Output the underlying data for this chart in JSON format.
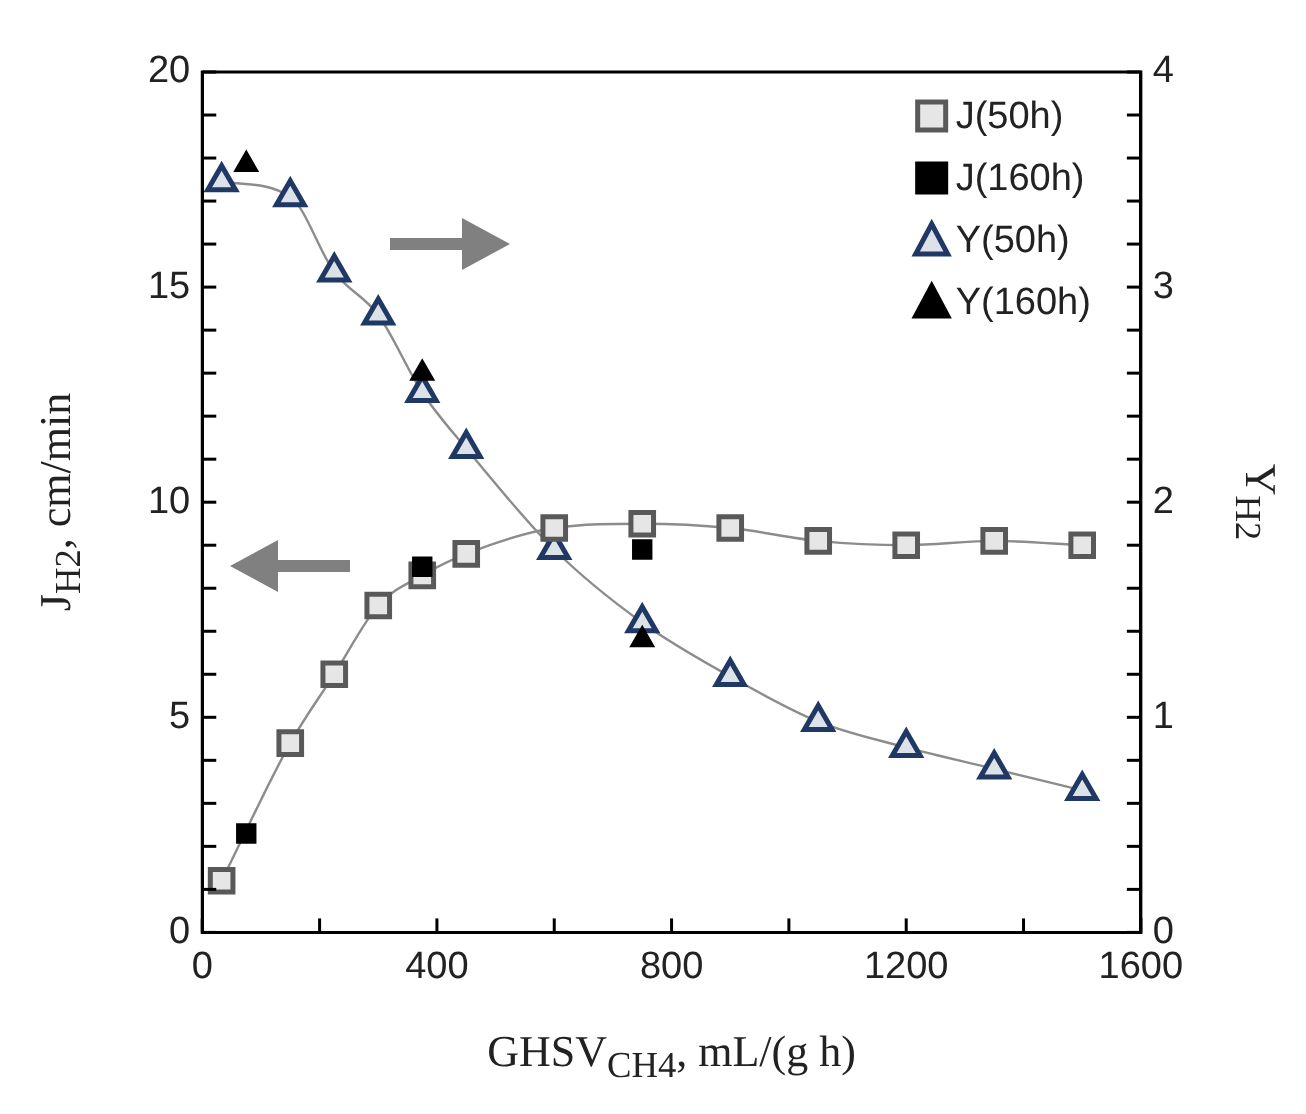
{
  "chart_data": {
    "type": "line",
    "xlabel": "GHSV$_{CH4}$, mL/(g h)",
    "ylabel": "J$_{H2}$, cm/min",
    "y2label": "Y$_{H2}$",
    "xlim": [
      0,
      1600
    ],
    "xticks": [
      0,
      {
        "value": 200,
        "label": null
      },
      400,
      {
        "value": 600,
        "label": null
      },
      800,
      {
        "value": 1000,
        "label": null
      },
      1200,
      {
        "value": 1400,
        "label": null
      },
      1600
    ],
    "ylim": [
      0,
      20
    ],
    "yticks": [
      0,
      {
        "value": 1,
        "label": null
      },
      {
        "value": 2,
        "label": null
      },
      {
        "value": 3,
        "label": null
      },
      {
        "value": 4,
        "label": null
      },
      5,
      {
        "value": 6,
        "label": null
      },
      {
        "value": 7,
        "label": null
      },
      {
        "value": 8,
        "label": null
      },
      {
        "value": 9,
        "label": null
      },
      10,
      {
        "value": 11,
        "label": null
      },
      {
        "value": 12,
        "label": null
      },
      {
        "value": 13,
        "label": null
      },
      {
        "value": 14,
        "label": null
      },
      15,
      {
        "value": 16,
        "label": null
      },
      {
        "value": 17,
        "label": null
      },
      {
        "value": 18,
        "label": null
      },
      {
        "value": 19,
        "label": null
      },
      20
    ],
    "y2lim": [
      0,
      4
    ],
    "y2ticks": [
      0,
      {
        "value": 0.2,
        "label": null
      },
      {
        "value": 0.4,
        "label": null
      },
      {
        "value": 0.6,
        "label": null
      },
      {
        "value": 0.8,
        "label": null
      },
      1,
      {
        "value": 1.2,
        "label": null
      },
      {
        "value": 1.4,
        "label": null
      },
      {
        "value": 1.6,
        "label": null
      },
      {
        "value": 1.8,
        "label": null
      },
      2,
      {
        "value": 2.2,
        "label": null
      },
      {
        "value": 2.4,
        "label": null
      },
      {
        "value": 2.6,
        "label": null
      },
      {
        "value": 2.8,
        "label": null
      },
      3,
      {
        "value": 3.2,
        "label": null
      },
      {
        "value": 3.4,
        "label": null
      },
      {
        "value": 3.6,
        "label": null
      },
      {
        "value": 3.8,
        "label": null
      },
      4
    ],
    "legend": "top right",
    "grid": false,
    "series": [
      {
        "name": "J(50h)",
        "marker": "square",
        "color": "#595959",
        "x": [
          33,
          150,
          225,
          300,
          375,
          450,
          600,
          750,
          900,
          1050,
          1200,
          1350,
          1500
        ],
        "values": [
          1.2,
          4.4,
          6.0,
          7.6,
          8.3,
          8.8,
          9.4,
          9.5,
          9.4,
          9.1,
          9.0,
          9.1,
          9.0
        ]
      },
      {
        "name": "J(160h)",
        "type": "scatter",
        "marker": "square",
        "color": "#000000",
        "x": [
          75,
          375,
          750
        ],
        "values": [
          2.3,
          8.5,
          8.9
        ]
      },
      {
        "name": "Y(50h)",
        "marker": "triangle",
        "color": "#1f3864",
        "axis": "y2",
        "x": [
          33,
          150,
          225,
          300,
          375,
          450,
          600,
          750,
          900,
          1050,
          1200,
          1350,
          1500
        ],
        "values": [
          3.49,
          3.42,
          3.07,
          2.87,
          2.51,
          2.25,
          1.78,
          1.44,
          1.19,
          0.98,
          0.86,
          0.76,
          0.66
        ]
      },
      {
        "name": "Y(160h)",
        "type": "scatter",
        "marker": "triangle",
        "color": "#000000",
        "axis": "y2",
        "x": [
          75,
          375,
          750
        ],
        "values": [
          3.57,
          2.6,
          1.36
        ]
      }
    ]
  }
}
